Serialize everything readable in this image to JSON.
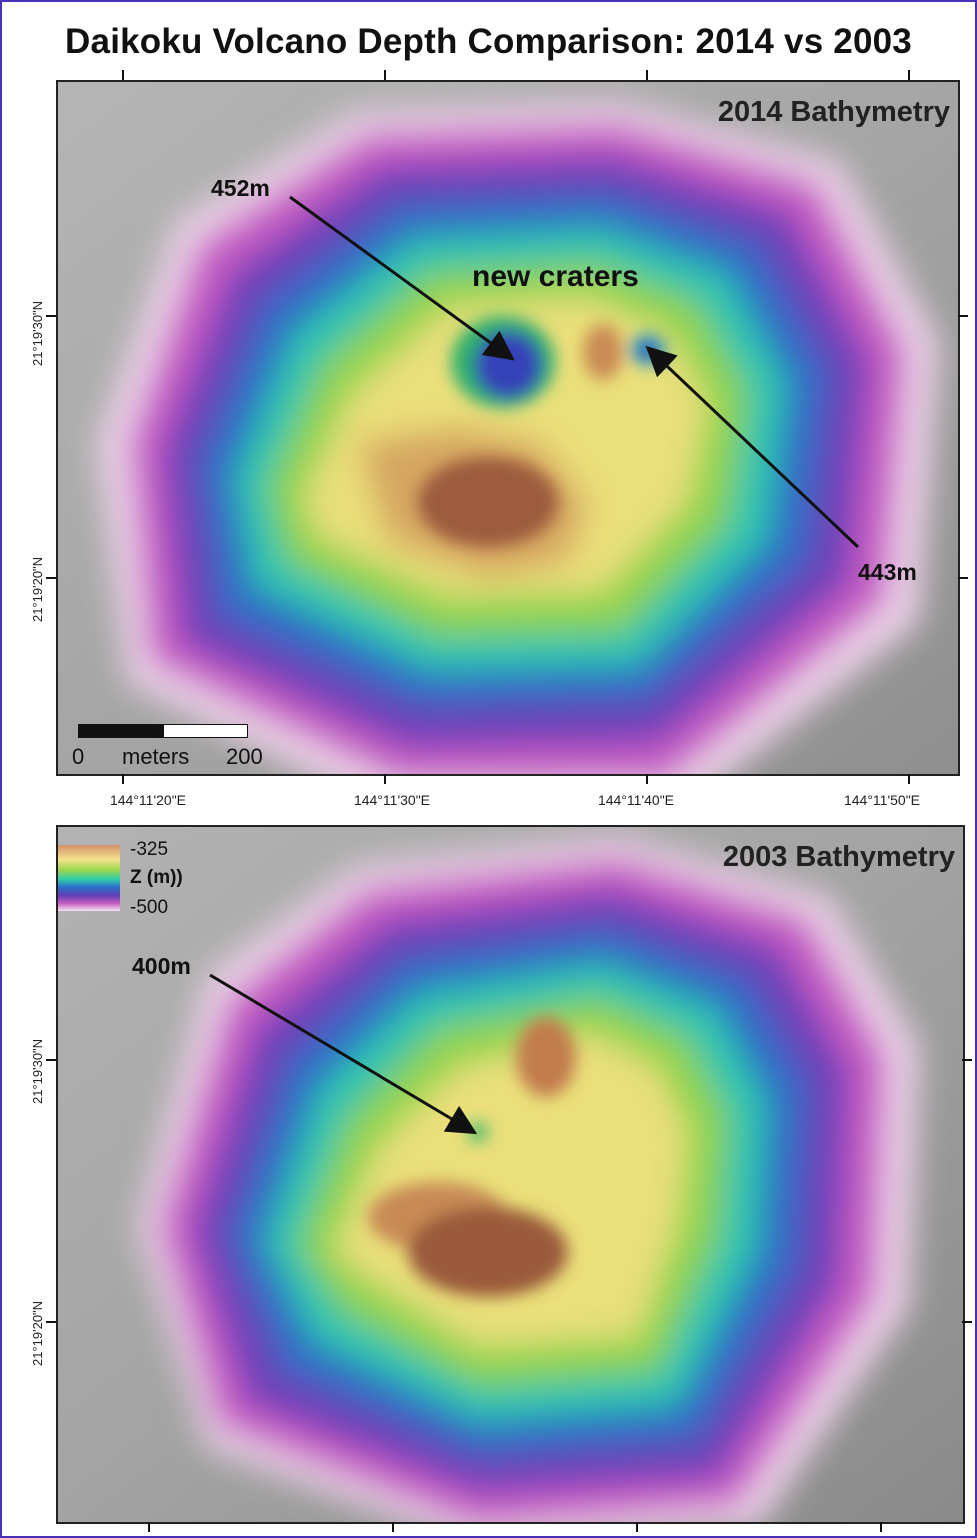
{
  "title": "Daikoku Volcano Depth Comparison: 2014 vs 2003",
  "panels": {
    "top": {
      "label": "2014 Bathymetry",
      "annotations": {
        "crater_west_depth": "452m",
        "crater_east_depth": "443m",
        "craters_label": "new craters"
      },
      "scale_bar": {
        "start": "0",
        "unit": "meters",
        "end": "200"
      }
    },
    "bottom": {
      "label": "2003 Bathymetry",
      "annotations": {
        "summit_depth": "400m"
      },
      "legend": {
        "max": "-325",
        "title": "Z (m))",
        "min": "-500"
      }
    }
  },
  "axes": {
    "x_labels": [
      "144°11'20\"E",
      "144°11'30\"E",
      "144°11'40\"E",
      "144°11'50\"E"
    ],
    "y_labels": [
      "21°19'30\"N",
      "21°19'20\"N"
    ]
  },
  "colors": {
    "frame": "#4a2fb8",
    "ramp": [
      "#d58e6a",
      "#f3e38a",
      "#98d64e",
      "#2fcdaa",
      "#2c6fc8",
      "#5f3fb6",
      "#c15ac0",
      "#f5e2f3"
    ]
  }
}
